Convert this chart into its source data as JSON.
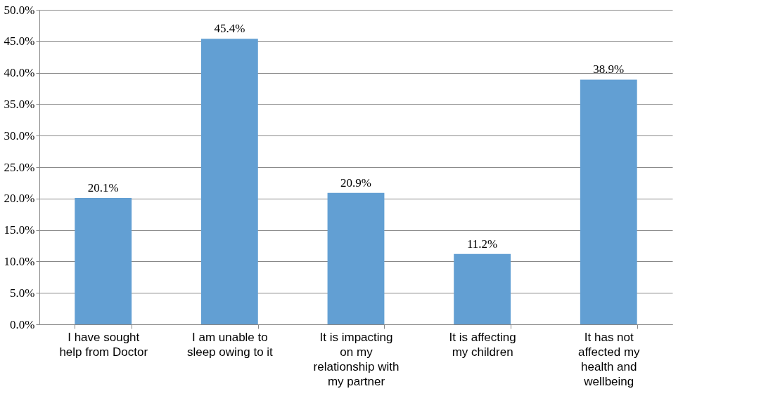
{
  "chart_data": {
    "type": "bar",
    "categories": [
      "I have sought help from Doctor",
      "I am unable to sleep owing to it",
      "It is impacting on my relationship with my partner",
      "It is affecting my children",
      "It has not affected my health and wellbeing"
    ],
    "values": [
      20.1,
      45.4,
      20.9,
      11.2,
      38.9
    ],
    "value_labels": [
      "20.1%",
      "45.4%",
      "20.9%",
      "11.2%",
      "38.9%"
    ],
    "color": "#629fd3",
    "ylim": [
      0,
      50
    ],
    "yticks": [
      {
        "value": 0,
        "label": "0.0%"
      },
      {
        "value": 5,
        "label": "5.0%"
      },
      {
        "value": 10,
        "label": "10.0%"
      },
      {
        "value": 15,
        "label": "15.0%"
      },
      {
        "value": 20,
        "label": "20.0%"
      },
      {
        "value": 25,
        "label": "25.0%"
      },
      {
        "value": 30,
        "label": "30.0%"
      },
      {
        "value": 35,
        "label": "35.0%"
      },
      {
        "value": 40,
        "label": "40.0%"
      },
      {
        "value": 45,
        "label": "45.0%"
      },
      {
        "value": 50,
        "label": "50.0%"
      }
    ],
    "grid": "y"
  }
}
